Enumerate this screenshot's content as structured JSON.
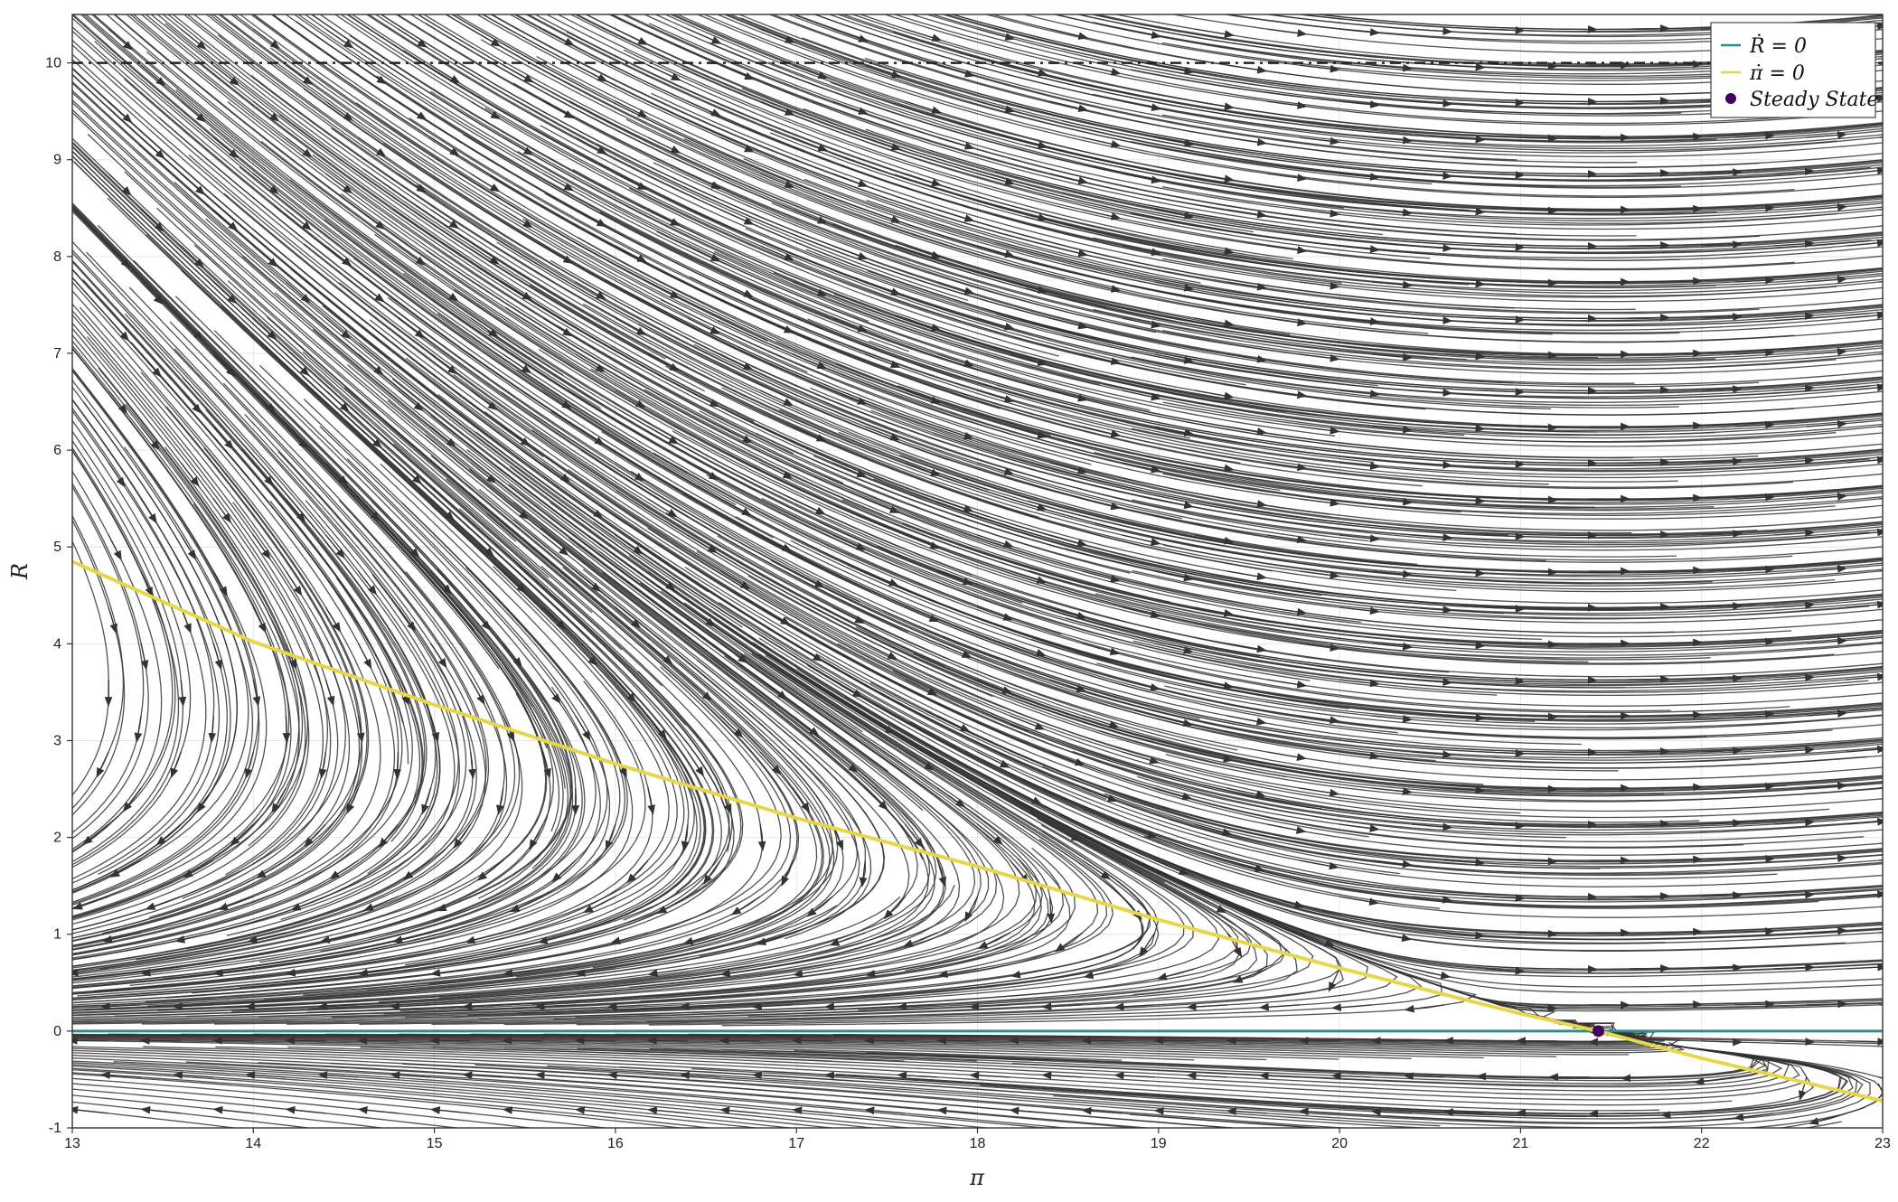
{
  "chart_data": {
    "type": "line",
    "title": "",
    "xlabel": "π",
    "ylabel": "R",
    "xlim": [
      13,
      23
    ],
    "ylim": [
      -1,
      10.5
    ],
    "xticks": [
      "13",
      "14",
      "15",
      "16",
      "17",
      "18",
      "19",
      "20",
      "21",
      "22",
      "23"
    ],
    "yticks": [
      "-1",
      "0",
      "1",
      "2",
      "3",
      "4",
      "5",
      "6",
      "7",
      "8",
      "9",
      "10"
    ],
    "grid": true,
    "legend_position": "top-right",
    "legend": [
      {
        "label": "Ṙ = 0",
        "symbol": "line",
        "color": "#2a8f8a"
      },
      {
        "label": "π̇ = 0",
        "symbol": "line",
        "color": "#e6d64a"
      },
      {
        "label": "Steady State",
        "symbol": "dot",
        "color": "#44015a"
      }
    ],
    "series": [
      {
        "name": "Ṙ = 0",
        "kind": "nullcline",
        "color": "#2a8f8a",
        "x": [
          13,
          23
        ],
        "y": [
          0,
          0
        ]
      },
      {
        "name": "π̇ = 0",
        "kind": "nullcline",
        "color": "#e6d64a",
        "x": [
          13,
          14,
          15,
          16,
          17,
          18,
          19,
          20,
          21,
          21.43,
          22,
          23
        ],
        "y": [
          4.85,
          4.02,
          3.37,
          2.76,
          2.2,
          1.7,
          1.15,
          0.65,
          0.18,
          0,
          -0.28,
          -0.72
        ]
      },
      {
        "name": "Steady State",
        "kind": "point",
        "color": "#44015a",
        "x": [
          21.43
        ],
        "y": [
          0
        ]
      }
    ],
    "reference_line": {
      "y": 10,
      "style": "dash-dot",
      "color": "#222222"
    },
    "streamplot": {
      "field": "phase-portrait",
      "line_color": "#333333"
    }
  }
}
